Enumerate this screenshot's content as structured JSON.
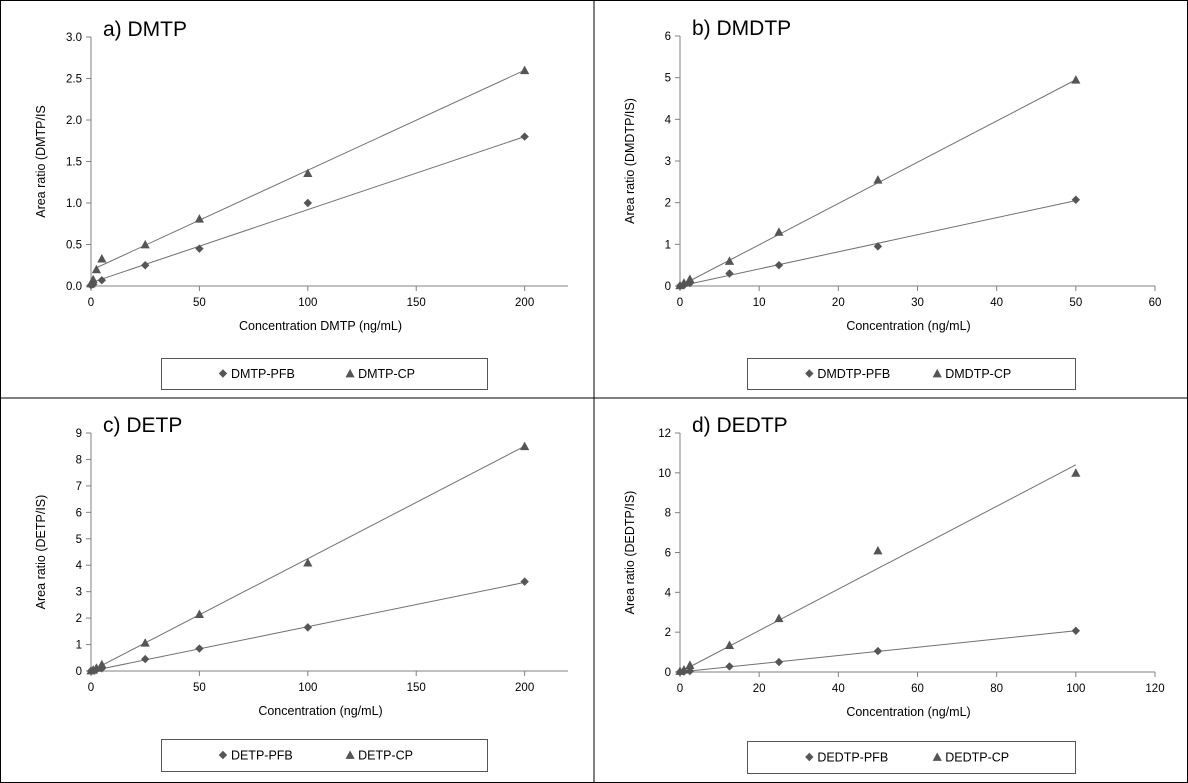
{
  "chart_data": [
    {
      "type": "scatter",
      "title": "a) DMTP",
      "xlabel": "Concentration DMTP (ng/mL)",
      "ylabel": "Area ratio (DMTP/IS",
      "xlim": [
        0,
        220
      ],
      "ylim": [
        0,
        3.0
      ],
      "xticks": [
        0,
        50,
        100,
        150,
        200
      ],
      "yticks": [
        0.0,
        0.5,
        1.0,
        1.5,
        2.0,
        2.5,
        3.0
      ],
      "ydecimals": 1,
      "legend_position": "bottom",
      "series": [
        {
          "name": "DMTP-PFB",
          "marker": "diamond",
          "x": [
            0,
            1,
            5,
            25,
            50,
            100,
            200
          ],
          "y": [
            0.01,
            0.02,
            0.07,
            0.25,
            0.45,
            1.0,
            1.8
          ],
          "fit": [
            [
              0,
              0.04
            ],
            [
              200,
              1.8
            ]
          ]
        },
        {
          "name": "DMTP-CP",
          "marker": "triangle",
          "x": [
            0,
            1,
            2.5,
            5,
            25,
            50,
            100,
            200
          ],
          "y": [
            0.03,
            0.08,
            0.2,
            0.33,
            0.5,
            0.81,
            1.36,
            2.6
          ],
          "fit": [
            [
              2.5,
              0.22
            ],
            [
              200,
              2.6
            ]
          ]
        }
      ]
    },
    {
      "type": "scatter",
      "title": "b) DMDTP",
      "xlabel": "Concentration (ng/mL)",
      "ylabel": "Area ratio (DMDTP/IS)",
      "xlim": [
        0,
        60
      ],
      "ylim": [
        0,
        6
      ],
      "xticks": [
        0,
        10,
        20,
        30,
        40,
        50,
        60
      ],
      "yticks": [
        0,
        1,
        2,
        3,
        4,
        5,
        6
      ],
      "ydecimals": 0,
      "legend_position": "bottom",
      "series": [
        {
          "name": "DMDTP-PFB",
          "marker": "diamond",
          "x": [
            0,
            0.5,
            1.25,
            6.25,
            12.5,
            25,
            50
          ],
          "y": [
            0.0,
            0.02,
            0.07,
            0.3,
            0.5,
            0.95,
            2.07
          ],
          "fit": [
            [
              0,
              0.0
            ],
            [
              50,
              2.05
            ]
          ]
        },
        {
          "name": "DMDTP-CP",
          "marker": "triangle",
          "x": [
            0,
            0.5,
            1.25,
            6.25,
            12.5,
            25,
            50
          ],
          "y": [
            0.02,
            0.08,
            0.17,
            0.6,
            1.3,
            2.55,
            4.95
          ],
          "fit": [
            [
              0,
              0.0
            ],
            [
              50,
              4.95
            ]
          ]
        }
      ]
    },
    {
      "type": "scatter",
      "title": "c) DETP",
      "xlabel": "Concentration (ng/mL)",
      "ylabel": "Area ratio (DETP/IS)",
      "xlim": [
        0,
        220
      ],
      "ylim": [
        0,
        9
      ],
      "xticks": [
        0,
        50,
        100,
        150,
        200
      ],
      "yticks": [
        0,
        1,
        2,
        3,
        4,
        5,
        6,
        7,
        8,
        9
      ],
      "ydecimals": 0,
      "legend_position": "bottom",
      "series": [
        {
          "name": "DETP-PFB",
          "marker": "diamond",
          "x": [
            0,
            1,
            2.5,
            5,
            25,
            50,
            100,
            200
          ],
          "y": [
            0.0,
            0.02,
            0.05,
            0.1,
            0.45,
            0.85,
            1.65,
            3.38
          ],
          "fit": [
            [
              0,
              0.0
            ],
            [
              200,
              3.35
            ]
          ]
        },
        {
          "name": "DETP-CP",
          "marker": "triangle",
          "x": [
            0,
            1,
            2.5,
            5,
            25,
            50,
            100,
            200
          ],
          "y": [
            0.02,
            0.05,
            0.12,
            0.25,
            1.07,
            2.15,
            4.1,
            8.5
          ],
          "fit": [
            [
              0,
              0.0
            ],
            [
              200,
              8.5
            ]
          ]
        }
      ]
    },
    {
      "type": "scatter",
      "title": "d) DEDTP",
      "xlabel": "Concentration (ng/mL)",
      "ylabel": "Area ratio (DEDTP/IS)",
      "xlim": [
        0,
        120
      ],
      "ylim": [
        0,
        12
      ],
      "xticks": [
        0,
        20,
        40,
        60,
        80,
        100,
        120
      ],
      "yticks": [
        0,
        2,
        4,
        6,
        8,
        10,
        12
      ],
      "ydecimals": 0,
      "legend_position": "bottom",
      "series": [
        {
          "name": "DEDTP-PFB",
          "marker": "diamond",
          "x": [
            0,
            1,
            2.5,
            12.5,
            25,
            50,
            100
          ],
          "y": [
            0.0,
            0.02,
            0.05,
            0.28,
            0.5,
            1.05,
            2.07
          ],
          "fit": [
            [
              0,
              0.0
            ],
            [
              100,
              2.07
            ]
          ]
        },
        {
          "name": "DEDTP-CP",
          "marker": "triangle",
          "x": [
            0,
            1,
            2.5,
            12.5,
            25,
            50,
            100
          ],
          "y": [
            0.05,
            0.12,
            0.35,
            1.35,
            2.7,
            6.1,
            10.0
          ],
          "fit": [
            [
              0,
              0.0
            ],
            [
              100,
              10.4
            ]
          ]
        }
      ]
    }
  ]
}
